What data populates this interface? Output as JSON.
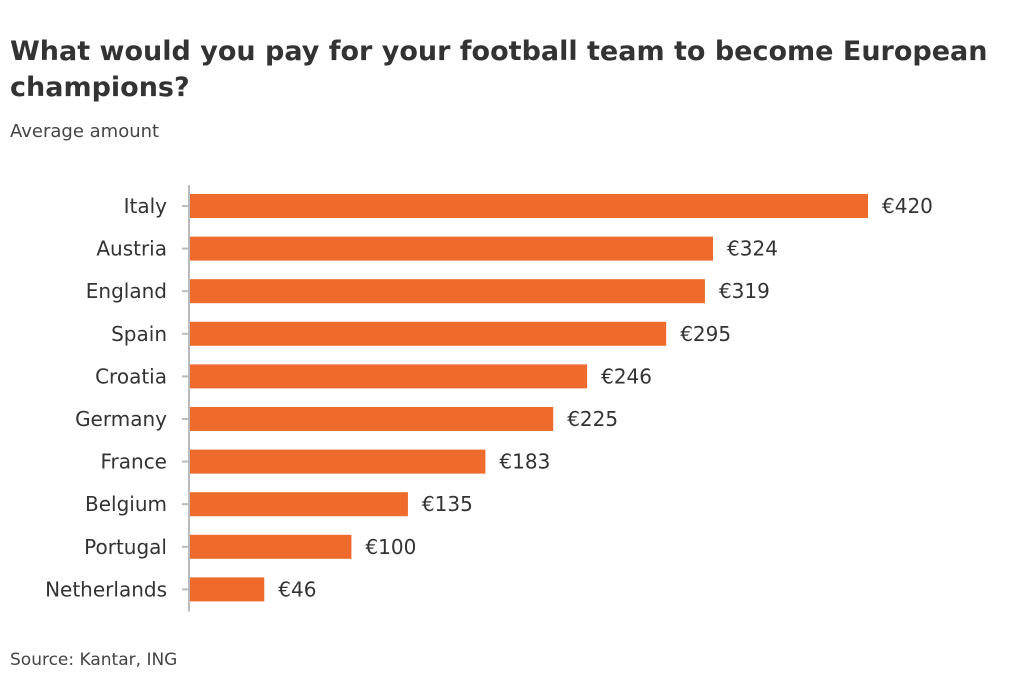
{
  "header": {
    "title": "What would you pay for your football team to become European champions?",
    "subtitle": "Average amount"
  },
  "footer": {
    "source": "Source: Kantar, ING"
  },
  "chart_data": {
    "type": "bar",
    "orientation": "horizontal",
    "title": "What would you pay for your football team to become European champions?",
    "subtitle": "Average amount",
    "categories": [
      "Italy",
      "Austria",
      "England",
      "Spain",
      "Croatia",
      "Germany",
      "France",
      "Belgium",
      "Portugal",
      "Netherlands"
    ],
    "values": [
      420,
      324,
      319,
      295,
      246,
      225,
      183,
      135,
      100,
      46
    ],
    "value_labels": [
      "€420",
      "€324",
      "€319",
      "€295",
      "€246",
      "€225",
      "€183",
      "€135",
      "€100",
      "€46"
    ],
    "xlim": [
      0,
      420
    ],
    "bar_color": "#ee6b2d",
    "axis_color": "#bbbbbb",
    "grid": false,
    "legend": "none"
  }
}
